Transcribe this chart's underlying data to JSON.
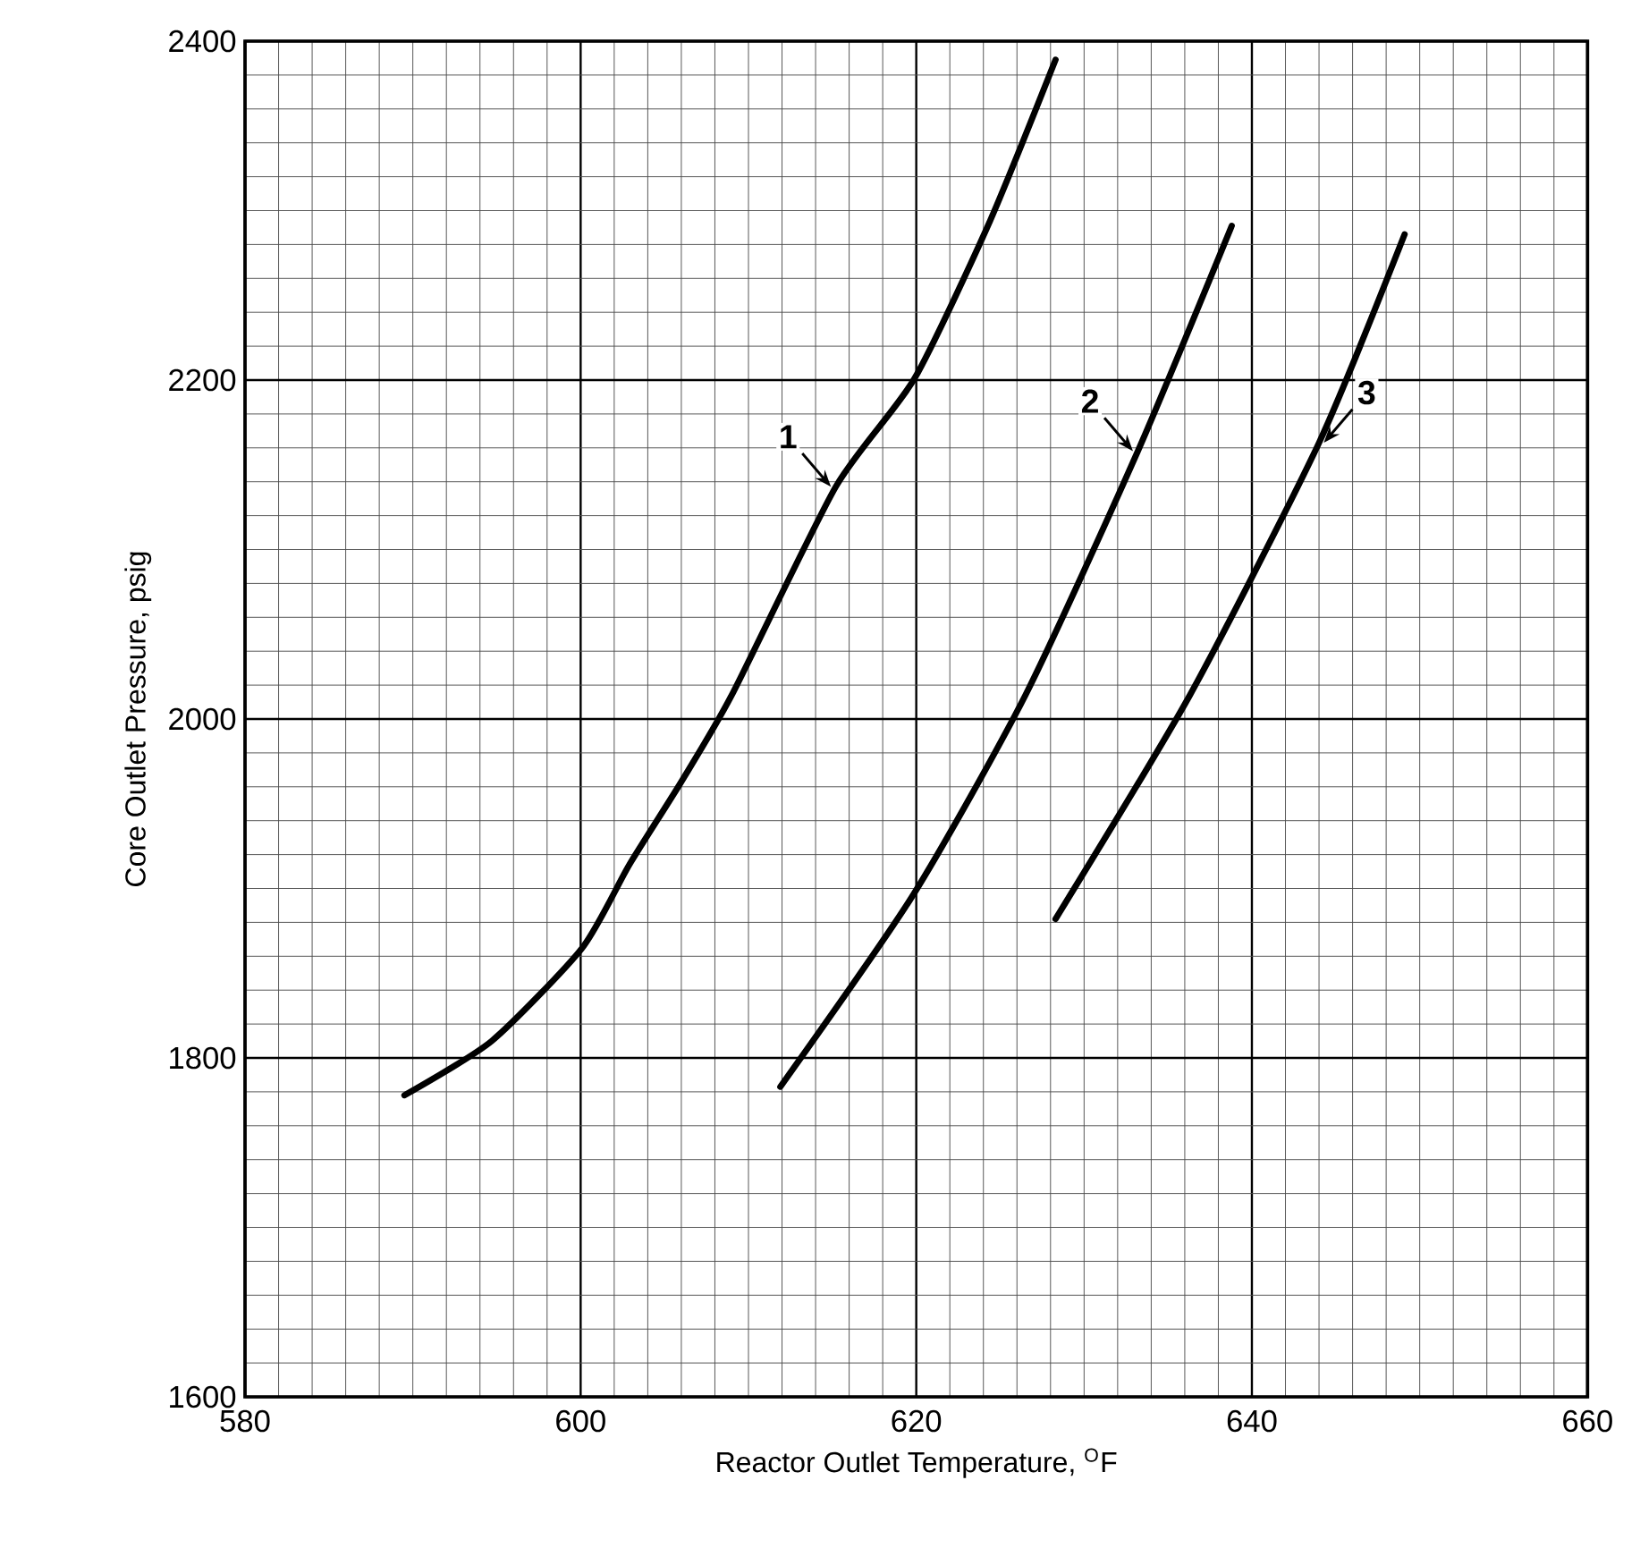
{
  "chart_data": {
    "type": "line",
    "xlabel": "Reactor Outlet Temperature, $^{O}$F",
    "ylabel": "Core Outlet Pressure, psig",
    "xlim": [
      580,
      660
    ],
    "ylim": [
      1600,
      2400
    ],
    "xticks": [
      580,
      600,
      620,
      640,
      660
    ],
    "yticks": [
      1600,
      1800,
      2000,
      2200,
      2400
    ],
    "grid": true,
    "marker": "none",
    "line_style": "solid",
    "series": [
      {
        "name": "1",
        "color": "#000000",
        "x": [
          589.5,
          594.7,
          600.1,
          602.9,
          606,
          609,
          615.2,
          619.9,
          624.4,
          628.3
        ],
        "values": [
          1778,
          1810,
          1865,
          1914,
          1963,
          2014,
          2137,
          2201,
          2294,
          2389
        ]
      },
      {
        "name": "2",
        "color": "#000000",
        "x": [
          611.9,
          619.8,
          626.5,
          633.2,
          638.8
        ],
        "values": [
          1783,
          1896,
          2014,
          2158,
          2291
        ]
      },
      {
        "name": "3",
        "color": "#000000",
        "x": [
          628.3,
          636.3,
          644.0,
          649.1
        ],
        "values": [
          1882,
          2014,
          2163,
          2286
        ]
      }
    ]
  }
}
